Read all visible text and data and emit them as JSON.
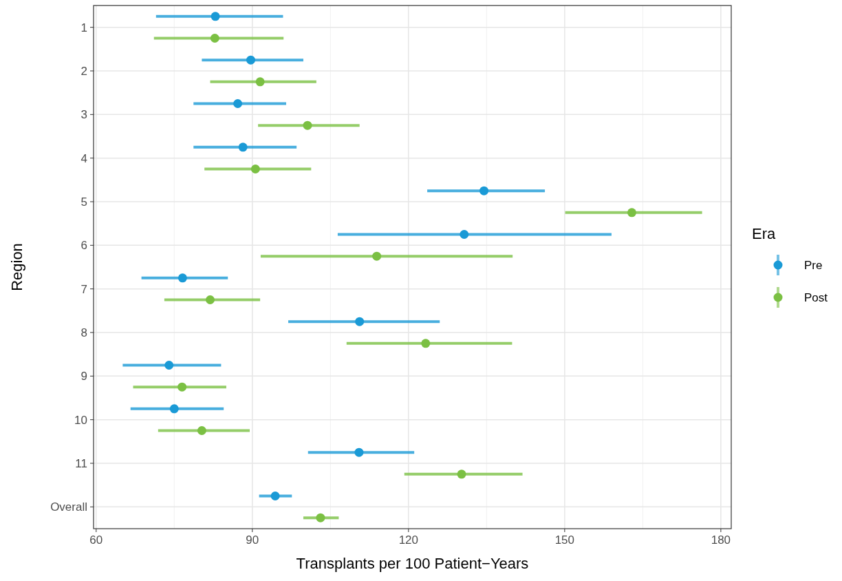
{
  "chart_data": {
    "type": "scatter",
    "orientation": "horizontal",
    "xlabel": "Transplants per 100 Patient−Years",
    "ylabel": "Region",
    "legend_title": "Era",
    "legend": "right",
    "grid": true,
    "marker": "circle",
    "categories": [
      "1",
      "2",
      "3",
      "4",
      "5",
      "6",
      "7",
      "8",
      "9",
      "10",
      "11",
      "Overall"
    ],
    "xlim": [
      59.5,
      182
    ],
    "xticks": [
      60,
      90,
      120,
      150,
      180
    ],
    "series": [
      {
        "name": "Pre",
        "color": "#1a9ad6",
        "values": [
          82.9,
          89.7,
          87.2,
          88.2,
          134.5,
          130.7,
          76.6,
          110.6,
          74.0,
          75.0,
          110.5,
          94.4
        ],
        "errors": [
          [
            71.5,
            95.9
          ],
          [
            80.3,
            99.8
          ],
          [
            78.7,
            96.5
          ],
          [
            78.7,
            98.5
          ],
          [
            123.6,
            146.2
          ],
          [
            106.4,
            159.0
          ],
          [
            68.7,
            85.3
          ],
          [
            96.9,
            126.0
          ],
          [
            65.1,
            84.0
          ],
          [
            66.6,
            84.5
          ],
          [
            100.7,
            121.1
          ],
          [
            91.3,
            97.6
          ]
        ]
      },
      {
        "name": "Post",
        "color": "#7bc043",
        "values": [
          82.8,
          91.5,
          100.6,
          90.6,
          162.9,
          113.9,
          81.9,
          123.3,
          76.5,
          80.3,
          130.2,
          103.1
        ],
        "errors": [
          [
            71.1,
            96.0
          ],
          [
            81.9,
            102.3
          ],
          [
            91.1,
            110.6
          ],
          [
            80.8,
            101.3
          ],
          [
            150.1,
            176.4
          ],
          [
            91.6,
            140.0
          ],
          [
            73.1,
            91.5
          ],
          [
            108.1,
            139.9
          ],
          [
            67.1,
            85.0
          ],
          [
            71.9,
            89.5
          ],
          [
            119.2,
            141.9
          ],
          [
            99.8,
            106.6
          ]
        ]
      }
    ]
  }
}
